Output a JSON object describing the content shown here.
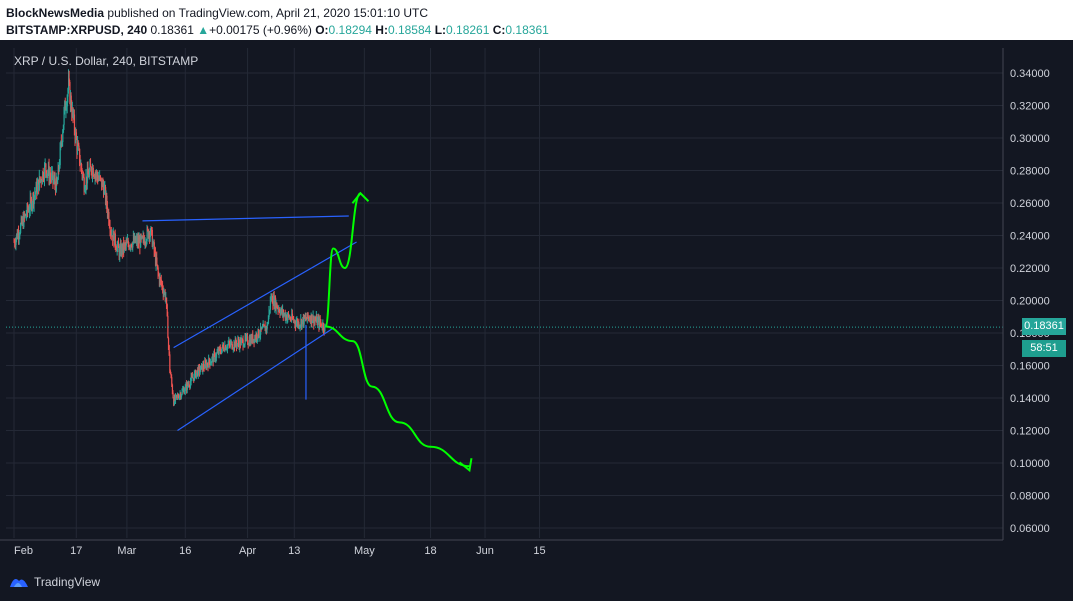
{
  "header": {
    "publisher": "BlockNewsMedia",
    "published_text": "published on TradingView.com, April 21, 2020 15:01:10 UTC",
    "symbol": "BITSTAMP:XRPUSD, 240",
    "last": "0.18361",
    "change_arrow": "▲",
    "change": "+0.00175 (+0.96%)",
    "o_label": "O:",
    "o_value": "0.18294",
    "h_label": "H:",
    "h_value": "0.18584",
    "l_label": "L:",
    "l_value": "0.18261",
    "c_label": "C:",
    "c_value": "0.18361"
  },
  "legend": "XRP / U.S. Dollar, 240, BITSTAMP",
  "price_tag": {
    "price": "0.18361",
    "countdown": "58:51"
  },
  "footer": {
    "brand": "TradingView"
  },
  "colors": {
    "background": "#131722",
    "up": "#26a69a",
    "down": "#ef5350",
    "channel": "#2962ff",
    "annotation": "#00ff00",
    "grid": "#242936"
  },
  "chart_data": {
    "type": "candlestick",
    "ylim": [
      0.05,
      0.35
    ],
    "y_ticks": [
      "0.34000",
      "0.32000",
      "0.30000",
      "0.28000",
      "0.26000",
      "0.24000",
      "0.22000",
      "0.20000",
      "0.18000",
      "0.16000",
      "0.14000",
      "0.12000",
      "0.10000",
      "0.08000",
      "0.06000"
    ],
    "x_ticks": [
      "Feb",
      "17",
      "Mar",
      "16",
      "Apr",
      "13",
      "May",
      "18",
      "Jun",
      "15"
    ],
    "close_path": [
      [
        "Feb 01",
        0.236
      ],
      [
        "Feb 05",
        0.258
      ],
      [
        "Feb 09",
        0.282
      ],
      [
        "Feb 12",
        0.27
      ],
      [
        "Feb 14",
        0.318
      ],
      [
        "Feb 15",
        0.332
      ],
      [
        "Feb 17",
        0.298
      ],
      [
        "Feb 19",
        0.272
      ],
      [
        "Feb 21",
        0.282
      ],
      [
        "Feb 24",
        0.27
      ],
      [
        "Feb 26",
        0.242
      ],
      [
        "Feb 28",
        0.23
      ],
      [
        "Mar 02",
        0.236
      ],
      [
        "Mar 05",
        0.236
      ],
      [
        "Mar 07",
        0.244
      ],
      [
        "Mar 09",
        0.216
      ],
      [
        "Mar 11",
        0.202
      ],
      [
        "Mar 12",
        0.158
      ],
      [
        "Mar 13",
        0.138
      ],
      [
        "Mar 16",
        0.146
      ],
      [
        "Mar 19",
        0.156
      ],
      [
        "Mar 23",
        0.164
      ],
      [
        "Mar 26",
        0.172
      ],
      [
        "Mar 30",
        0.174
      ],
      [
        "Apr 02",
        0.176
      ],
      [
        "Apr 06",
        0.184
      ],
      [
        "Apr 07",
        0.202
      ],
      [
        "Apr 10",
        0.192
      ],
      [
        "Apr 14",
        0.186
      ],
      [
        "Apr 17",
        0.19
      ],
      [
        "Apr 21",
        0.18361
      ]
    ],
    "channel_lines": [
      {
        "from": [
          "Mar 05",
          0.249
        ],
        "to": [
          "Apr 27",
          0.252
        ]
      },
      {
        "from": [
          "Mar 13",
          0.171
        ],
        "to": [
          "Apr 29",
          0.236
        ]
      },
      {
        "from": [
          "Mar 14",
          0.12
        ],
        "to": [
          "Apr 23",
          0.183
        ]
      }
    ],
    "projection_up": [
      [
        "Apr 21",
        0.184
      ],
      [
        "Apr 23",
        0.232
      ],
      [
        "Apr 26",
        0.22
      ],
      [
        "Apr 30",
        0.266
      ]
    ],
    "projection_down": [
      [
        "Apr 21",
        0.184
      ],
      [
        "Apr 28",
        0.175
      ],
      [
        "May 03",
        0.147
      ],
      [
        "May 10",
        0.125
      ],
      [
        "May 18",
        0.11
      ],
      [
        "May 28",
        0.098
      ]
    ]
  }
}
